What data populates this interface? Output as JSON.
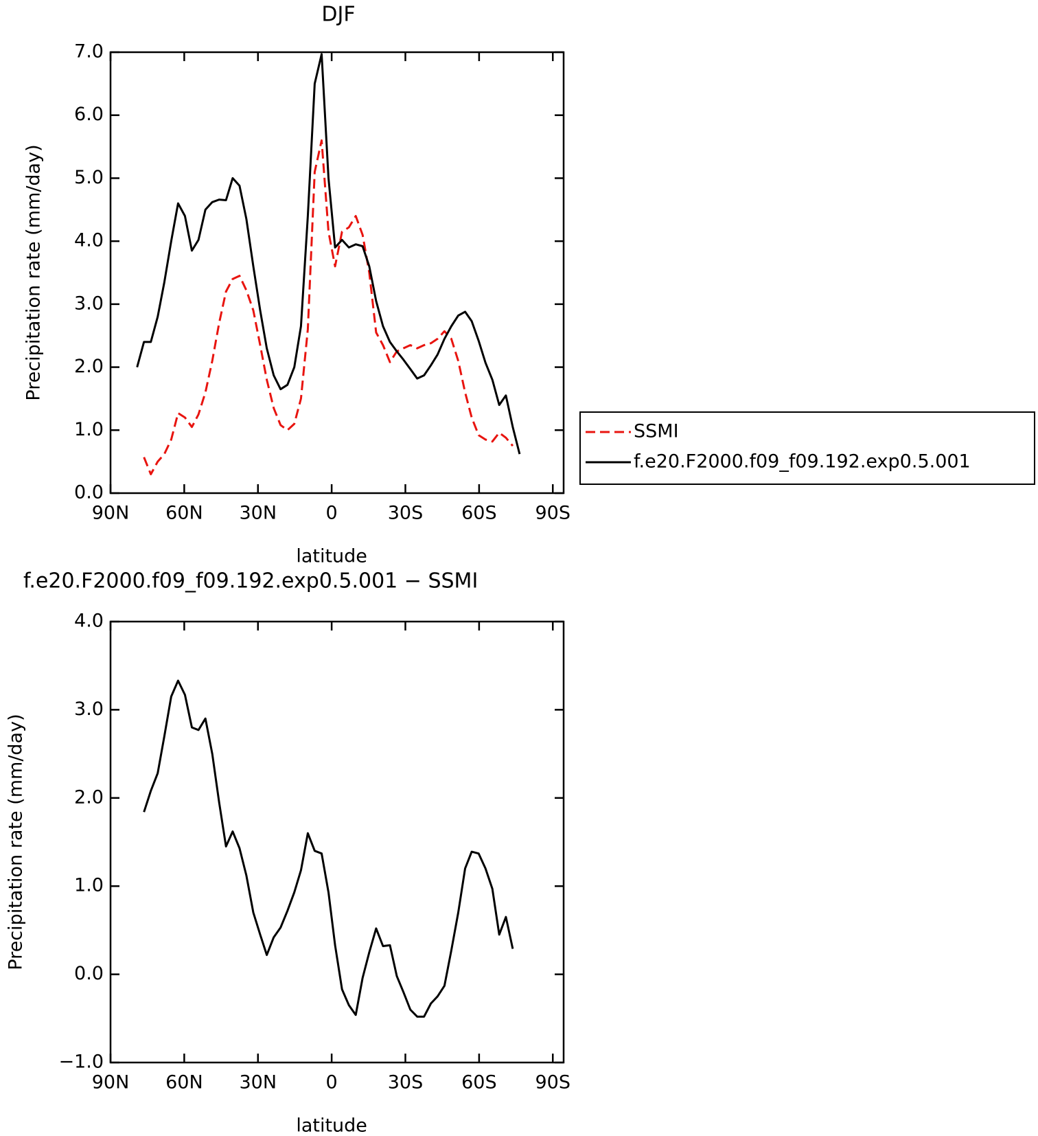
{
  "chart_data": [
    {
      "type": "line",
      "title": "DJF",
      "x_label": "latitude",
      "y_label": "Precipitation rate (mm/day)",
      "x": [
        79.2,
        76.4,
        73.6,
        70.8,
        68.1,
        65.3,
        62.5,
        59.7,
        56.9,
        54.2,
        51.4,
        48.6,
        45.8,
        43.0,
        40.3,
        37.5,
        34.7,
        31.9,
        29.1,
        26.4,
        23.6,
        20.8,
        18.0,
        15.2,
        12.5,
        9.7,
        6.9,
        4.1,
        1.3,
        -1.4,
        -4.2,
        -7.0,
        -9.8,
        -12.6,
        -15.3,
        -18.1,
        -20.9,
        -23.7,
        -26.5,
        -29.2,
        -32.0,
        -34.8,
        -37.6,
        -40.4,
        -43.1,
        -45.9,
        -48.7,
        -51.5,
        -54.3,
        -57.0,
        -59.8,
        -62.6,
        -65.4,
        -68.2,
        -70.9,
        -73.7,
        -76.5
      ],
      "series": [
        {
          "name": "SSMI",
          "color": "#e8140f",
          "dash": true,
          "values": [
            null,
            0.57,
            0.3,
            0.5,
            0.62,
            0.85,
            1.27,
            1.2,
            1.05,
            1.25,
            1.6,
            2.1,
            2.7,
            3.2,
            3.4,
            3.45,
            3.22,
            2.9,
            2.35,
            1.8,
            1.35,
            1.08,
            1.0,
            1.1,
            1.5,
            2.6,
            5.1,
            5.6,
            4.15,
            3.6,
            4.15,
            4.22,
            4.4,
            4.1,
            3.5,
            2.55,
            2.35,
            2.08,
            2.25,
            2.3,
            2.35,
            2.3,
            2.35,
            2.38,
            2.45,
            2.57,
            2.45,
            2.1,
            1.6,
            1.2,
            0.92,
            0.85,
            0.82,
            0.96,
            0.88,
            0.75,
            null
          ]
        },
        {
          "name": "f.e20.F2000.f09_f09.192.exp0.5.001",
          "color": "#000000",
          "dash": false,
          "values": [
            2.0,
            2.4,
            2.4,
            2.8,
            3.35,
            4.0,
            4.6,
            4.4,
            3.85,
            4.02,
            4.5,
            4.62,
            4.66,
            4.65,
            5.0,
            4.88,
            4.35,
            3.6,
            2.9,
            2.3,
            1.87,
            1.65,
            1.72,
            2.0,
            2.65,
            4.4,
            6.5,
            6.97,
            5.0,
            3.9,
            4.02,
            3.9,
            3.95,
            3.92,
            3.6,
            3.05,
            2.65,
            2.4,
            2.25,
            2.12,
            1.97,
            1.82,
            1.87,
            2.03,
            2.2,
            2.45,
            2.65,
            2.82,
            2.88,
            2.73,
            2.42,
            2.07,
            1.8,
            1.4,
            1.55,
            1.05,
            0.62
          ]
        }
      ],
      "xlim": [
        90,
        -94.4
      ],
      "xticks": [
        {
          "value": 90,
          "label": "90N"
        },
        {
          "value": 60,
          "label": "60N"
        },
        {
          "value": 30,
          "label": "30N"
        },
        0,
        {
          "value": -30,
          "label": "30S"
        },
        {
          "value": -60,
          "label": "60S"
        },
        {
          "value": -90,
          "label": "90S"
        }
      ],
      "ylim": [
        0,
        7
      ],
      "yticks": [
        {
          "value": 0,
          "label": "0.0"
        },
        {
          "value": 1,
          "label": "1.0"
        },
        {
          "value": 2,
          "label": "2.0"
        },
        {
          "value": 3,
          "label": "3.0"
        },
        {
          "value": 4,
          "label": "4.0"
        },
        {
          "value": 5,
          "label": "5.0"
        },
        {
          "value": 6,
          "label": "6.0"
        },
        {
          "value": 7,
          "label": "7.0"
        }
      ],
      "legend": "right"
    },
    {
      "type": "line",
      "title": "f.e20.F2000.f09_f09.192.exp0.5.001 − SSMI",
      "x_label": "latitude",
      "y_label": "Precipitation rate (mm/day)",
      "x": [
        76.4,
        73.6,
        70.8,
        68.1,
        65.3,
        62.5,
        59.7,
        56.9,
        54.2,
        51.4,
        48.6,
        45.8,
        43.0,
        40.3,
        37.5,
        34.7,
        31.9,
        29.1,
        26.4,
        23.6,
        20.8,
        18.0,
        15.2,
        12.5,
        9.7,
        6.9,
        4.1,
        1.3,
        -1.4,
        -4.2,
        -7.0,
        -9.8,
        -12.6,
        -15.3,
        -18.1,
        -20.9,
        -23.7,
        -26.5,
        -29.2,
        -32.0,
        -34.8,
        -37.6,
        -40.4,
        -43.1,
        -45.9,
        -48.7,
        -51.5,
        -54.3,
        -57.0,
        -59.8,
        -62.6,
        -65.4,
        -68.2,
        -70.9,
        -73.7
      ],
      "series": [
        {
          "color": "#000000",
          "dash": false,
          "values": [
            1.84,
            2.08,
            2.28,
            2.7,
            3.15,
            3.33,
            3.17,
            2.8,
            2.77,
            2.9,
            2.5,
            1.95,
            1.45,
            1.62,
            1.43,
            1.12,
            0.7,
            0.45,
            0.22,
            0.42,
            0.53,
            0.72,
            0.93,
            1.18,
            1.6,
            1.4,
            1.37,
            0.93,
            0.33,
            -0.17,
            -0.35,
            -0.46,
            -0.04,
            0.25,
            0.52,
            0.32,
            0.33,
            -0.02,
            -0.2,
            -0.4,
            -0.48,
            -0.48,
            -0.33,
            -0.25,
            -0.13,
            0.27,
            0.7,
            1.2,
            1.39,
            1.37,
            1.2,
            0.97,
            0.45,
            0.65,
            0.29
          ]
        }
      ],
      "xlim": [
        90,
        -94.4
      ],
      "xticks": [
        {
          "value": 90,
          "label": "90N"
        },
        {
          "value": 60,
          "label": "60N"
        },
        {
          "value": 30,
          "label": "30N"
        },
        0,
        {
          "value": -30,
          "label": "30S"
        },
        {
          "value": -60,
          "label": "60S"
        },
        {
          "value": -90,
          "label": "90S"
        }
      ],
      "ylim": [
        -1,
        4
      ],
      "yticks": [
        {
          "value": -1,
          "label": "−1.0"
        },
        {
          "value": 0,
          "label": "0.0"
        },
        {
          "value": 1,
          "label": "1.0"
        },
        {
          "value": 2,
          "label": "2.0"
        },
        {
          "value": 3,
          "label": "3.0"
        },
        {
          "value": 4,
          "label": "4.0"
        }
      ]
    }
  ]
}
